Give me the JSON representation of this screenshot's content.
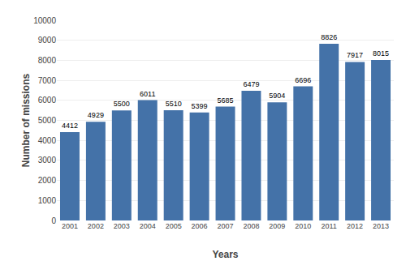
{
  "chart_data": {
    "type": "bar",
    "categories": [
      "2001",
      "2002",
      "2003",
      "2004",
      "2005",
      "2006",
      "2007",
      "2008",
      "2009",
      "2010",
      "2011",
      "2012",
      "2013"
    ],
    "values": [
      4412,
      4929,
      5500,
      6011,
      5510,
      5399,
      5685,
      6479,
      5904,
      6696,
      8826,
      7917,
      8015
    ],
    "color": "#4472a8",
    "xlabel": "Years",
    "ylabel": "Number of missions",
    "ylim": [
      0,
      10000
    ],
    "yticks": [
      0,
      1000,
      2000,
      3000,
      4000,
      5000,
      6000,
      7000,
      8000,
      9000,
      10000
    ],
    "grid": true,
    "data_labels": true
  }
}
